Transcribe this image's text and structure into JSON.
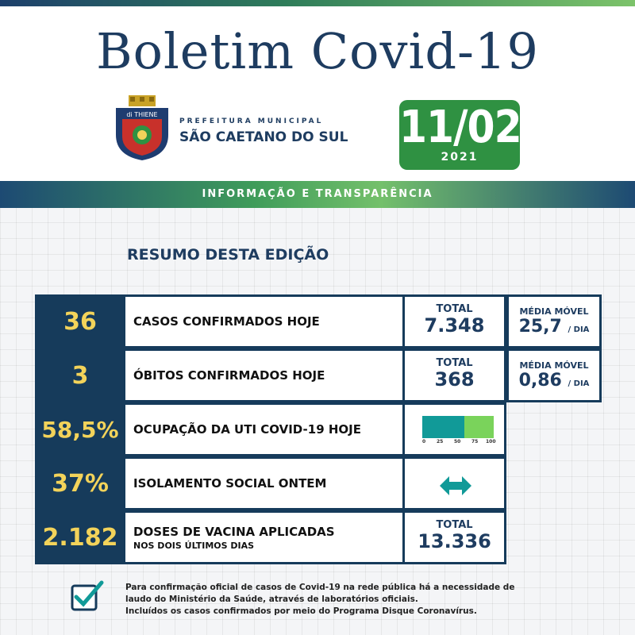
{
  "header": {
    "title": "Boletim Covid-19",
    "prefeitura_small": "PREFEITURA MUNICIPAL",
    "prefeitura_big": "SÃO CAETANO DO SUL",
    "crest_text": "di THIENE",
    "date": "11/02",
    "year": "2021"
  },
  "band": {
    "text": "INFORMAÇÃO E TRANSPARÊNCIA"
  },
  "resumo": {
    "title": "RESUMO DESTA EDIÇÃO"
  },
  "rows": [
    {
      "number": "36",
      "label": "CASOS CONFIRMADOS HOJE",
      "total_label": "TOTAL",
      "total_value": "7.348",
      "media_label": "MÉDIA MÓVEL",
      "media_value": "25,7",
      "media_unit": "/ DIA"
    },
    {
      "number": "3",
      "label": "ÓBITOS CONFIRMADOS HOJE",
      "total_label": "TOTAL",
      "total_value": "368",
      "media_label": "MÉDIA MÓVEL",
      "media_value": "0,86",
      "media_unit": "/ DIA"
    },
    {
      "number": "58,5%",
      "label": "OCUPAÇÃO DA UTI COVID-19 HOJE",
      "occupancy_percent": 58.5,
      "ticks": [
        "0",
        "25",
        "50",
        "75",
        "100"
      ]
    },
    {
      "number": "37%",
      "label": "ISOLAMENTO SOCIAL ONTEM",
      "icon": "double-arrow-icon"
    },
    {
      "number": "2.182",
      "label": "DOSES DE VACINA APLICADAS",
      "sublabel": "NOS DOIS ÚLTIMOS DIAS",
      "total_label": "TOTAL",
      "total_value": "13.336"
    }
  ],
  "footer": {
    "icon": "checkbox-check-icon",
    "lines": [
      "Para confirmação oficial de casos de Covid-19 na rede pública há a necessidade de",
      "laudo do Ministério da Saúde, através de laboratórios oficiais.",
      "Incluídos os casos confirmados por meio do Programa Disque Coronavírus."
    ]
  },
  "colors": {
    "navy": "#163b5b",
    "green": "#2f9142",
    "yellow": "#f3d35a",
    "teal": "#119a98",
    "light_green": "#7ad35b"
  }
}
